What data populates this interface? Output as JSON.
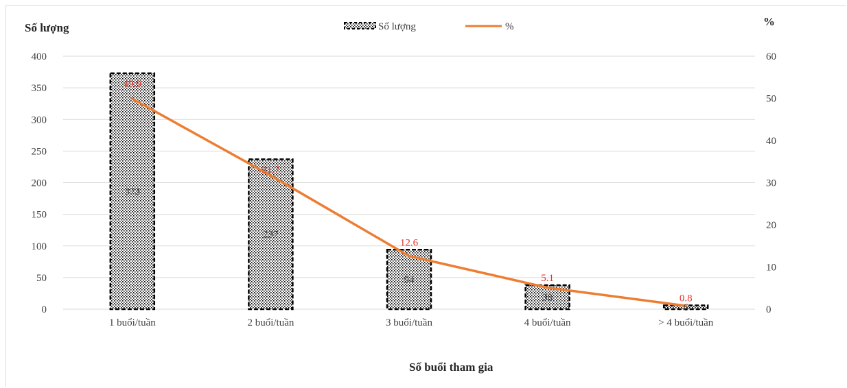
{
  "chart_data": {
    "type": "bar",
    "y_axis_title": "Số lượng",
    "y2_axis_title": "%",
    "x_axis_title": "Số buổi tham gia",
    "categories": [
      "1 buổi/tuần",
      "2 buổi/tuần",
      "3 buổi/tuần",
      "4 buổi/tuần",
      "> 4 buổi/tuần"
    ],
    "y_ticks": [
      "0",
      "50",
      "100",
      "150",
      "200",
      "250",
      "300",
      "350",
      "400"
    ],
    "y2_ticks": [
      "0",
      "10",
      "20",
      "30",
      "40",
      "50",
      "60"
    ],
    "ylim": [
      0,
      400
    ],
    "y2lim": [
      0,
      60
    ],
    "grid": true,
    "legend_position": "top-center",
    "series": [
      {
        "name": "Số lượng",
        "kind": "bar",
        "axis": "left",
        "values": [
          373,
          237,
          94,
          38,
          6
        ],
        "labels": [
          "373",
          "237",
          "94",
          "38",
          "6"
        ]
      },
      {
        "name": "%",
        "kind": "line",
        "axis": "right",
        "values": [
          49.9,
          31.7,
          12.6,
          5.1,
          0.8
        ],
        "labels": [
          "49.9",
          "31.7",
          "12.6",
          "5.1",
          "0.8"
        ]
      }
    ],
    "colors": {
      "bar_border": "#000000",
      "bar_pattern": "#000000",
      "line": "#ed7d31",
      "pct_label": "#e8322c",
      "grid": "#d9d9d9"
    }
  }
}
